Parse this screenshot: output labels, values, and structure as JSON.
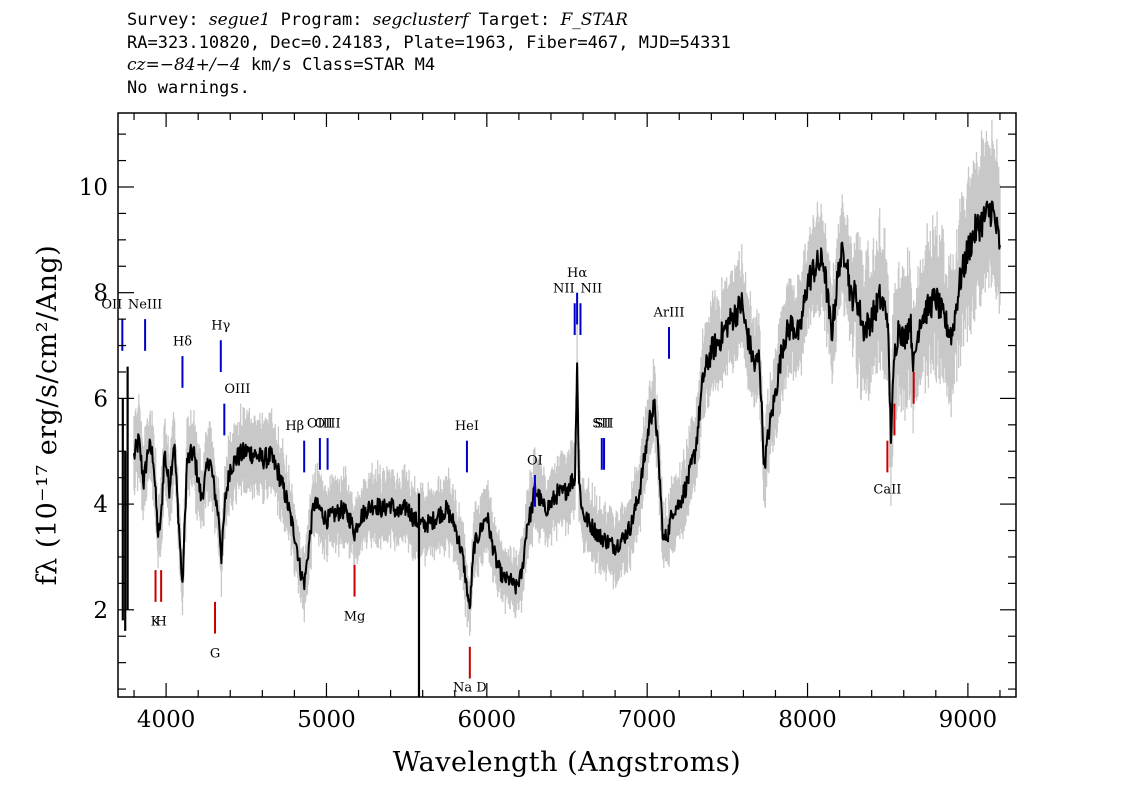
{
  "header": {
    "line1": {
      "survey_label": "Survey: ",
      "survey": "segue1",
      "program_label": " Program: ",
      "program": "segclusterf",
      "target_label": " Target: ",
      "target": "F_STAR"
    },
    "line2": "RA=323.10820, Dec=0.24183, Plate=1963, Fiber=467, MJD=54331",
    "line3": {
      "cz_label": "cz=",
      "cz": "−84+/−4",
      "rest": " km/s Class=STAR M4"
    },
    "line4": "No warnings."
  },
  "chart_data": {
    "type": "line",
    "xlabel": "Wavelength (Angstroms)",
    "ylabel": "fλ (10⁻¹⁷ erg/s/cm²/Ang)",
    "xlim": [
      3700,
      9300
    ],
    "ylim": [
      0.35,
      11.4
    ],
    "x_ticks": [
      4000,
      5000,
      6000,
      7000,
      8000,
      9000
    ],
    "y_ticks": [
      2,
      4,
      6,
      8,
      10
    ],
    "x_minor_step": 200,
    "y_minor_step": 0.5,
    "grid": false,
    "series": [
      {
        "color": "#000000",
        "noise_color": "#c8c8c8",
        "x": [
          3800,
          3830,
          3860,
          3890,
          3920,
          3950,
          3968,
          3990,
          4020,
          4050,
          4080,
          4102,
          4130,
          4170,
          4220,
          4270,
          4300,
          4330,
          4345,
          4370,
          4400,
          4450,
          4500,
          4550,
          4600,
          4650,
          4700,
          4750,
          4780,
          4810,
          4840,
          4862,
          4890,
          4920,
          4960,
          5000,
          5050,
          5100,
          5150,
          5175,
          5200,
          5250,
          5300,
          5350,
          5400,
          5450,
          5500,
          5550,
          5600,
          5650,
          5700,
          5750,
          5800,
          5850,
          5893,
          5920,
          5960,
          6000,
          6030,
          6060,
          6100,
          6150,
          6180,
          6220,
          6250,
          6280,
          6300,
          6330,
          6360,
          6400,
          6440,
          6480,
          6520,
          6550,
          6563,
          6575,
          6600,
          6650,
          6700,
          6750,
          6800,
          6850,
          6900,
          6950,
          6990,
          7020,
          7050,
          7080,
          7100,
          7130,
          7160,
          7200,
          7250,
          7300,
          7350,
          7400,
          7450,
          7500,
          7550,
          7590,
          7610,
          7640,
          7670,
          7700,
          7730,
          7760,
          7800,
          7850,
          7900,
          7950,
          8000,
          8050,
          8100,
          8150,
          8200,
          8240,
          8270,
          8300,
          8350,
          8400,
          8450,
          8498,
          8520,
          8542,
          8570,
          8600,
          8640,
          8662,
          8700,
          8750,
          8800,
          8850,
          8900,
          8950,
          9000,
          9050,
          9100,
          9150,
          9200
        ],
        "y": [
          4.9,
          5.2,
          4.4,
          5.1,
          4.9,
          3.4,
          3.7,
          5.0,
          4.3,
          5.2,
          3.6,
          2.4,
          4.8,
          5.0,
          4.1,
          4.9,
          4.3,
          3.7,
          3.0,
          4.1,
          4.7,
          4.9,
          5.0,
          4.95,
          4.85,
          4.9,
          4.6,
          4.1,
          3.7,
          3.3,
          2.7,
          2.5,
          3.2,
          4.0,
          3.9,
          3.7,
          3.8,
          3.9,
          3.7,
          3.45,
          3.7,
          3.9,
          4.0,
          3.9,
          4.0,
          3.8,
          3.95,
          3.7,
          3.6,
          3.65,
          3.8,
          3.9,
          3.6,
          3.0,
          2.0,
          3.2,
          3.5,
          3.8,
          3.3,
          2.9,
          2.6,
          2.55,
          2.4,
          2.7,
          3.6,
          3.9,
          4.3,
          4.1,
          3.9,
          4.0,
          4.2,
          4.2,
          4.4,
          4.5,
          6.8,
          4.4,
          3.8,
          3.6,
          3.4,
          3.3,
          3.2,
          3.35,
          3.6,
          4.2,
          5.0,
          5.7,
          5.8,
          4.4,
          3.3,
          3.45,
          3.9,
          4.0,
          4.4,
          5.0,
          6.4,
          6.9,
          7.1,
          7.4,
          7.6,
          7.8,
          7.4,
          7.0,
          6.6,
          6.8,
          4.7,
          5.4,
          6.1,
          7.1,
          7.4,
          7.2,
          8.2,
          8.5,
          8.6,
          7.2,
          8.6,
          8.8,
          7.9,
          8.0,
          7.3,
          7.5,
          7.9,
          7.6,
          5.3,
          6.8,
          7.4,
          7.1,
          7.5,
          6.6,
          7.5,
          7.7,
          7.9,
          7.5,
          7.2,
          8.2,
          8.8,
          9.2,
          9.4,
          9.6,
          8.9
        ]
      }
    ],
    "spikes": [
      {
        "x": 3730,
        "y": 6.0,
        "low": 1.8
      },
      {
        "x": 3745,
        "y": 5.0,
        "low": 1.6
      },
      {
        "x": 3760,
        "y": 6.6,
        "low": 2.0
      },
      {
        "x": 5577,
        "y": 4.2,
        "low": 0.35
      }
    ],
    "emission_lines": [
      {
        "label": "OII",
        "x": 3727,
        "y0": 6.9,
        "y1": 7.5,
        "label_y": 7.7,
        "align": "end"
      },
      {
        "label": "NeIII",
        "x": 3869,
        "y0": 6.9,
        "y1": 7.5,
        "label_y": 7.7,
        "align": "middle"
      },
      {
        "label": "Hδ",
        "x": 4102,
        "y0": 6.2,
        "y1": 6.8,
        "label_y": 7.0,
        "align": "middle"
      },
      {
        "label": "Hγ",
        "x": 4341,
        "y0": 6.5,
        "y1": 7.1,
        "label_y": 7.3,
        "align": "middle"
      },
      {
        "label": "OIII",
        "x": 4363,
        "y0": 5.3,
        "y1": 5.9,
        "label_y": 6.1,
        "align": "start"
      },
      {
        "label": "Hβ",
        "x": 4861,
        "y0": 4.6,
        "y1": 5.2,
        "label_y": 5.4,
        "align": "end"
      },
      {
        "label": "OIII",
        "x": 4959,
        "y0": 4.65,
        "y1": 5.25,
        "label_y": 5.45,
        "align": "middle"
      },
      {
        "label": "OIII",
        "x": 5007,
        "y0": 4.65,
        "y1": 5.25,
        "label_y": 5.45,
        "align": "middle"
      },
      {
        "label": "HeI",
        "x": 5876,
        "y0": 4.6,
        "y1": 5.2,
        "label_y": 5.4,
        "align": "middle"
      },
      {
        "label": "OI",
        "x": 6300,
        "y0": 3.95,
        "y1": 4.55,
        "label_y": 4.75,
        "align": "middle"
      },
      {
        "label": "NII",
        "x": 6548,
        "y0": 7.2,
        "y1": 7.8,
        "label_y": 8.0,
        "align": "end"
      },
      {
        "label": "Hα",
        "x": 6563,
        "y0": 7.4,
        "y1": 8.0,
        "label_y": 8.3,
        "align": "middle"
      },
      {
        "label": "NII",
        "x": 6584,
        "y0": 7.2,
        "y1": 7.8,
        "label_y": 8.0,
        "align": "start"
      },
      {
        "label": "SII",
        "x": 6717,
        "y0": 4.65,
        "y1": 5.25,
        "label_y": 5.45,
        "align": "middle"
      },
      {
        "label": "SII",
        "x": 6731,
        "y0": 4.65,
        "y1": 5.25,
        "label_y": 5.45,
        "align": "middle"
      },
      {
        "label": "ArIII",
        "x": 7136,
        "y0": 6.75,
        "y1": 7.35,
        "label_y": 7.55,
        "align": "middle"
      }
    ],
    "absorption_lines": [
      {
        "label": "K",
        "x": 3934,
        "y0": 2.75,
        "y1": 2.15,
        "label_y": 1.7,
        "align": "middle"
      },
      {
        "label": "H",
        "x": 3969,
        "y0": 2.75,
        "y1": 2.15,
        "label_y": 1.7,
        "align": "middle"
      },
      {
        "label": "G",
        "x": 4305,
        "y0": 2.15,
        "y1": 1.55,
        "label_y": 1.1,
        "align": "middle"
      },
      {
        "label": "Mg",
        "x": 5175,
        "y0": 2.85,
        "y1": 2.25,
        "label_y": 1.8,
        "align": "middle"
      },
      {
        "label": "Na D",
        "x": 5894,
        "y0": 1.3,
        "y1": 0.7,
        "label_y": 0.45,
        "align": "middle"
      },
      {
        "label": "CaII",
        "x": 8498,
        "y0": 5.2,
        "y1": 4.6,
        "label_y": 4.2,
        "align": "middle"
      },
      {
        "label": "",
        "x": 8542,
        "y0": 5.9,
        "y1": 5.3
      },
      {
        "label": "",
        "x": 8662,
        "y0": 6.5,
        "y1": 5.9
      }
    ],
    "emission_color": "#0000c8",
    "absorption_color": "#c80000"
  }
}
